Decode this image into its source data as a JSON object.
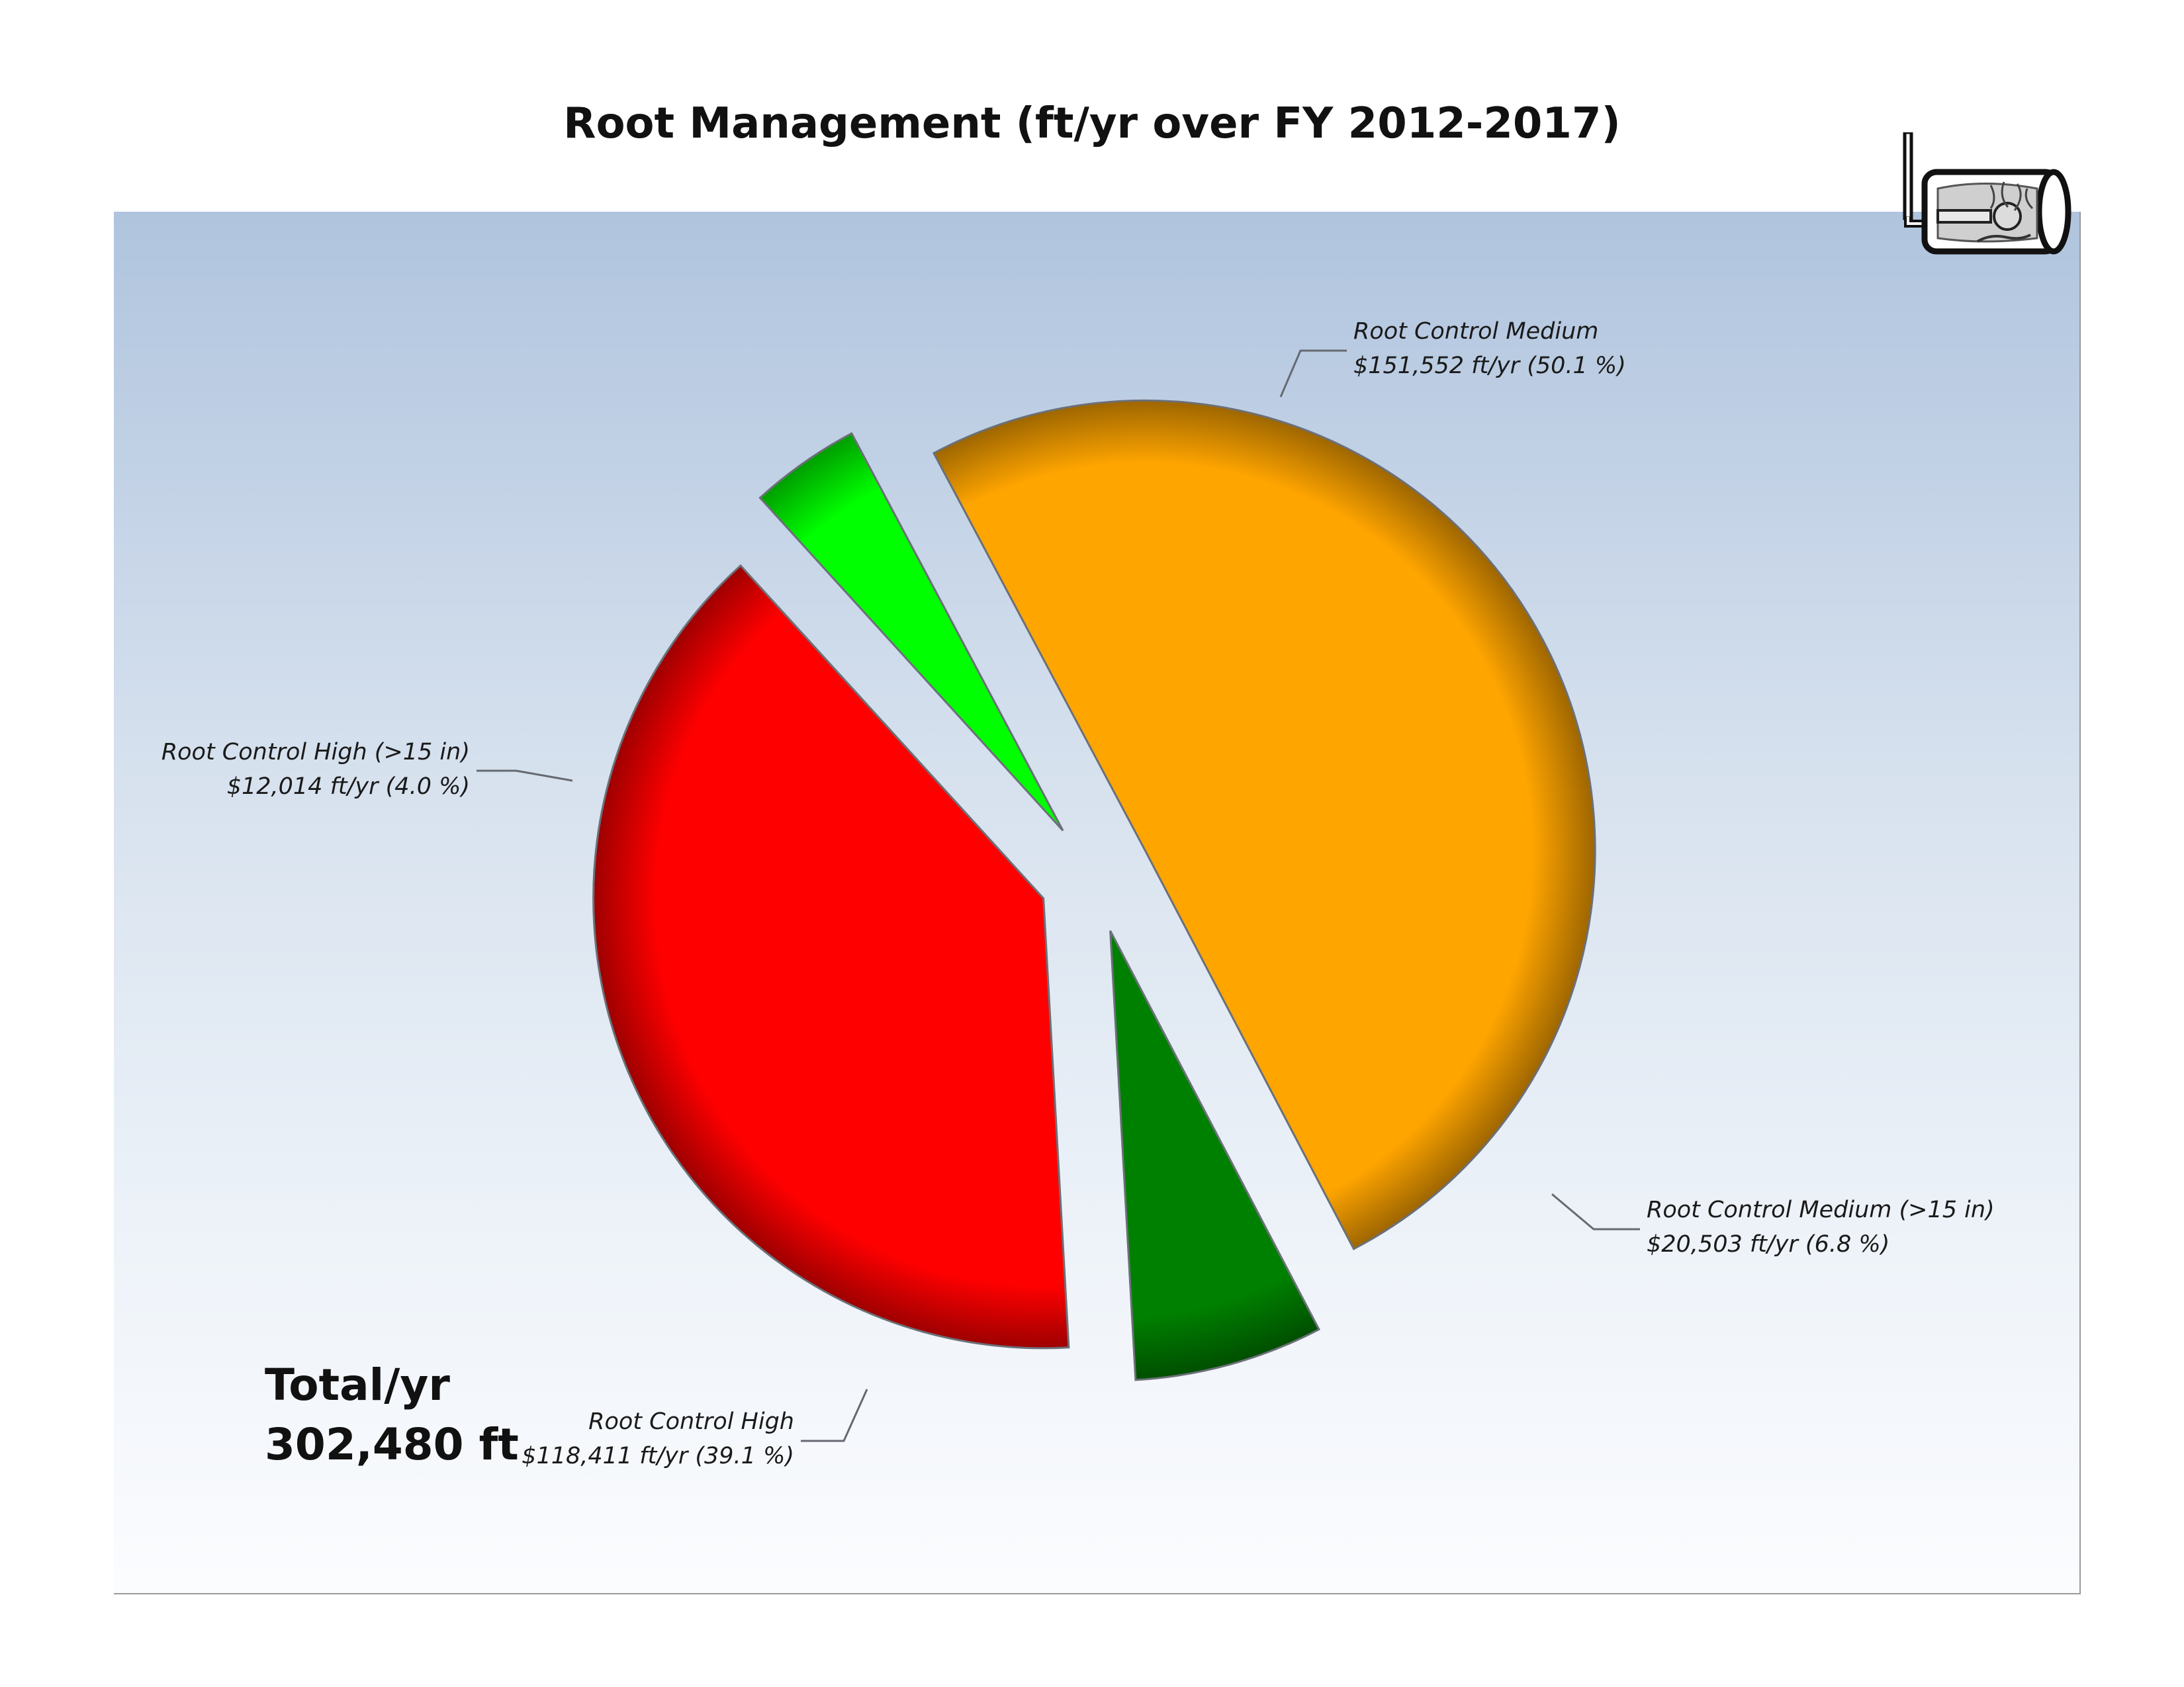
{
  "chart_data": {
    "type": "pie",
    "title": "Root Management (ft/yr over FY 2012-2017)",
    "slices": [
      {
        "name": "Root Control Medium",
        "value": 151552,
        "percent": 50.1,
        "value_text": "$151,552 ft/yr (50.1 %)",
        "color": "#ffa500"
      },
      {
        "name": "Root Control Medium (>15 in)",
        "value": 20503,
        "percent": 6.8,
        "value_text": "$20,503 ft/yr (6.8 %)",
        "color": "#008000"
      },
      {
        "name": "Root Control High",
        "value": 118411,
        "percent": 39.1,
        "value_text": "$118,411 ft/yr (39.1 %)",
        "color": "#ff0000"
      },
      {
        "name": "Root Control High (>15 in)",
        "value": 12014,
        "percent": 4.0,
        "value_text": "$12,014 ft/yr (4.0 %)",
        "color": "#00ff00"
      }
    ],
    "total_label": "Total/yr",
    "total_value": "302,480 ft",
    "legend": "none",
    "exploded": true
  },
  "logo": {
    "icon": "sewer-pipe-root-cutter-icon"
  }
}
